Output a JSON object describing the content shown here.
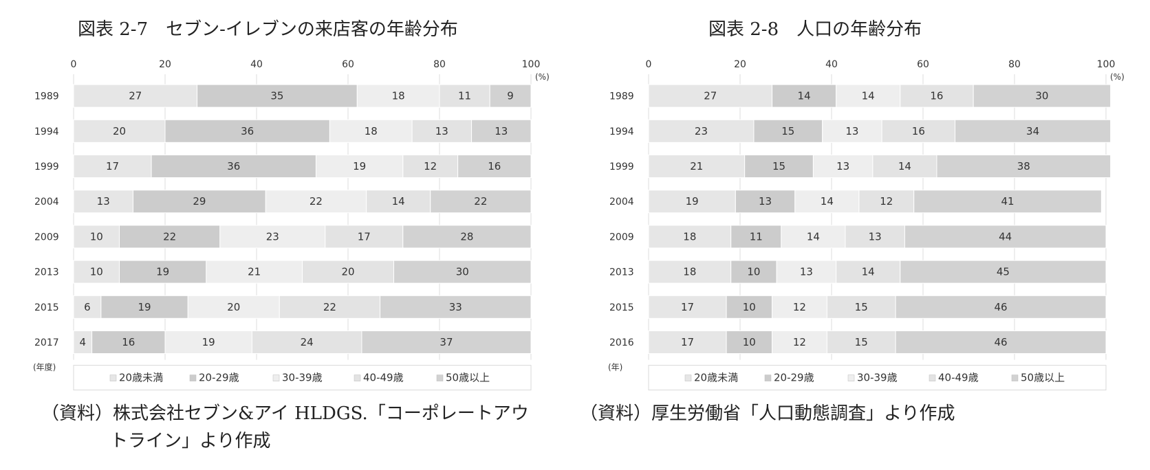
{
  "left": {
    "title": "図表 2-7　セブン-イレブンの来店客の年齢分布",
    "source_line1": "（資料）株式会社セブン&アイ HLDGS.「コーポレートアウ",
    "source_line2": "トライン」より作成"
  },
  "right": {
    "title": "図表 2-8　人口の年齢分布",
    "source_line1": "（資料）厚生労働省「人口動態調査」より作成"
  },
  "chart_data": [
    {
      "type": "bar",
      "orientation": "horizontal",
      "stacked": true,
      "title": "図表 2-7　セブン-イレブンの来店客の年齢分布",
      "categories": [
        "1989",
        "1994",
        "1999",
        "2004",
        "2009",
        "2013",
        "2015",
        "2017"
      ],
      "y_unit_label": "(年度)",
      "x_unit_label": "(%)",
      "xlim": [
        0,
        100
      ],
      "x_ticks": [
        0,
        20,
        40,
        60,
        80,
        100
      ],
      "grid": true,
      "legend_position": "bottom",
      "series": [
        {
          "name": "20歳未満",
          "color": "#e6e6e6",
          "values": [
            27,
            20,
            17,
            13,
            10,
            10,
            6,
            4
          ]
        },
        {
          "name": "20-29歳",
          "color": "#cccccc",
          "values": [
            35,
            36,
            36,
            29,
            22,
            19,
            19,
            16
          ]
        },
        {
          "name": "30-39歳",
          "color": "#eeeeee",
          "values": [
            18,
            18,
            19,
            22,
            23,
            21,
            20,
            19
          ]
        },
        {
          "name": "40-49歳",
          "color": "#e3e3e3",
          "values": [
            11,
            13,
            12,
            14,
            17,
            20,
            22,
            24
          ]
        },
        {
          "name": "50歳以上",
          "color": "#d2d2d2",
          "values": [
            9,
            13,
            16,
            22,
            28,
            30,
            33,
            37
          ]
        }
      ]
    },
    {
      "type": "bar",
      "orientation": "horizontal",
      "stacked": true,
      "title": "図表 2-8　人口の年齢分布",
      "categories": [
        "1989",
        "1994",
        "1999",
        "2004",
        "2009",
        "2013",
        "2015",
        "2016"
      ],
      "y_unit_label": "(年)",
      "x_unit_label": "(%)",
      "xlim": [
        0,
        100
      ],
      "x_ticks": [
        0,
        20,
        40,
        60,
        80,
        100
      ],
      "grid": true,
      "legend_position": "bottom",
      "series": [
        {
          "name": "20歳未満",
          "color": "#e6e6e6",
          "values": [
            27,
            23,
            21,
            19,
            18,
            18,
            17,
            17
          ]
        },
        {
          "name": "20-29歳",
          "color": "#cccccc",
          "values": [
            14,
            15,
            15,
            13,
            11,
            10,
            10,
            10
          ]
        },
        {
          "name": "30-39歳",
          "color": "#eeeeee",
          "values": [
            14,
            13,
            13,
            14,
            14,
            13,
            12,
            12
          ]
        },
        {
          "name": "40-49歳",
          "color": "#e3e3e3",
          "values": [
            16,
            16,
            14,
            12,
            13,
            14,
            15,
            15
          ]
        },
        {
          "name": "50歳以上",
          "color": "#d2d2d2",
          "values": [
            30,
            34,
            38,
            41,
            44,
            45,
            46,
            46
          ]
        }
      ]
    }
  ]
}
